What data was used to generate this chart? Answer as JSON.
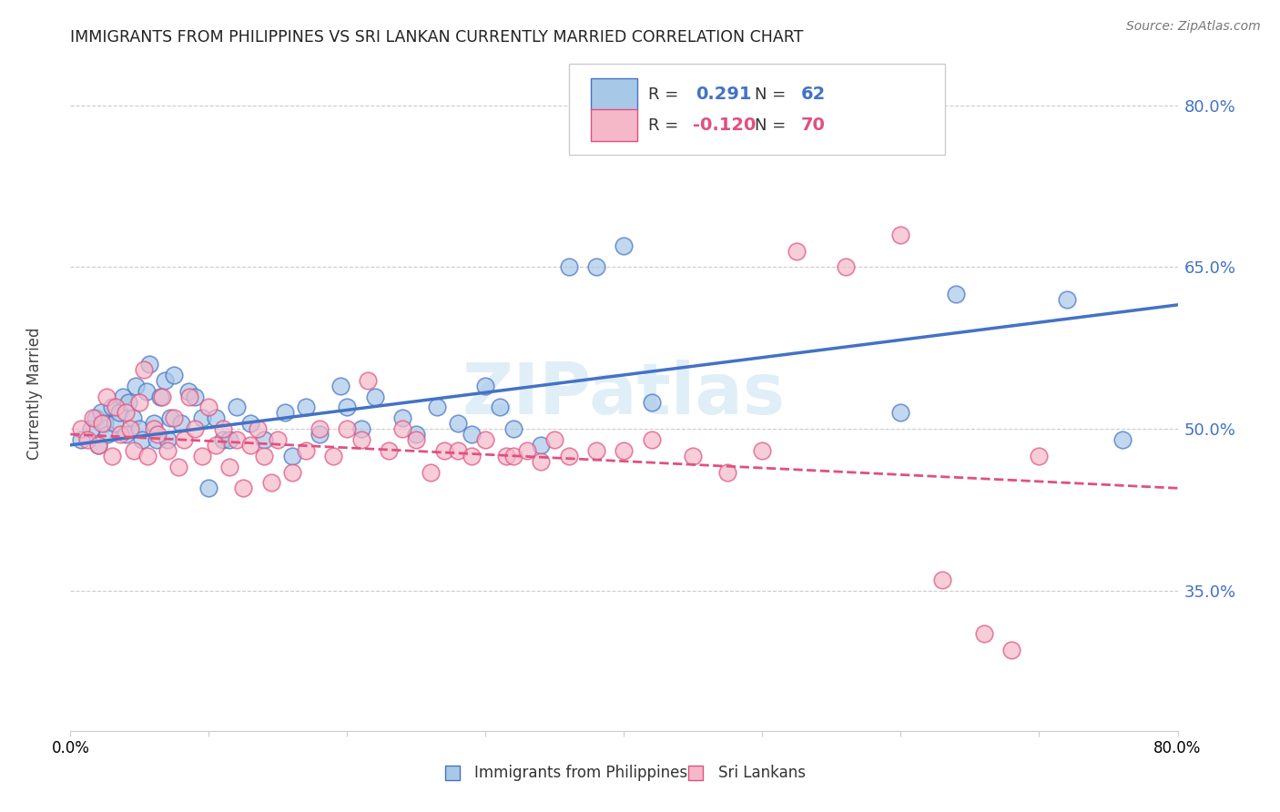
{
  "title": "IMMIGRANTS FROM PHILIPPINES VS SRI LANKAN CURRENTLY MARRIED CORRELATION CHART",
  "source": "Source: ZipAtlas.com",
  "ylabel": "Currently Married",
  "legend_label1": "Immigrants from Philippines",
  "legend_label2": "Sri Lankans",
  "r1": "0.291",
  "n1": "62",
  "r2": "-0.120",
  "n2": "70",
  "color1": "#a8c8e8",
  "color2": "#f5b8c8",
  "line_color1": "#4472c4",
  "line_color2": "#e05080",
  "watermark": "ZIPatlas",
  "ytick_labels": [
    "35.0%",
    "50.0%",
    "65.0%",
    "80.0%"
  ],
  "ytick_values": [
    0.35,
    0.5,
    0.65,
    0.8
  ],
  "xmin": 0.0,
  "xmax": 0.8,
  "ymin": 0.22,
  "ymax": 0.845,
  "blue_x": [
    0.008,
    0.015,
    0.018,
    0.02,
    0.022,
    0.025,
    0.027,
    0.03,
    0.032,
    0.035,
    0.038,
    0.04,
    0.042,
    0.045,
    0.047,
    0.05,
    0.052,
    0.055,
    0.057,
    0.06,
    0.062,
    0.065,
    0.068,
    0.07,
    0.072,
    0.075,
    0.08,
    0.085,
    0.09,
    0.095,
    0.1,
    0.105,
    0.11,
    0.115,
    0.12,
    0.13,
    0.14,
    0.155,
    0.16,
    0.17,
    0.18,
    0.195,
    0.2,
    0.21,
    0.22,
    0.24,
    0.25,
    0.265,
    0.28,
    0.29,
    0.3,
    0.31,
    0.32,
    0.34,
    0.36,
    0.38,
    0.4,
    0.42,
    0.6,
    0.64,
    0.72,
    0.76
  ],
  "blue_y": [
    0.49,
    0.5,
    0.51,
    0.485,
    0.515,
    0.505,
    0.495,
    0.52,
    0.505,
    0.515,
    0.53,
    0.495,
    0.525,
    0.51,
    0.54,
    0.5,
    0.49,
    0.535,
    0.56,
    0.505,
    0.49,
    0.53,
    0.545,
    0.49,
    0.51,
    0.55,
    0.505,
    0.535,
    0.53,
    0.51,
    0.445,
    0.51,
    0.49,
    0.49,
    0.52,
    0.505,
    0.49,
    0.515,
    0.475,
    0.52,
    0.495,
    0.54,
    0.52,
    0.5,
    0.53,
    0.51,
    0.495,
    0.52,
    0.505,
    0.495,
    0.54,
    0.52,
    0.5,
    0.485,
    0.65,
    0.65,
    0.67,
    0.525,
    0.515,
    0.625,
    0.62,
    0.49
  ],
  "pink_x": [
    0.008,
    0.012,
    0.016,
    0.02,
    0.023,
    0.026,
    0.03,
    0.033,
    0.036,
    0.04,
    0.043,
    0.046,
    0.05,
    0.053,
    0.056,
    0.06,
    0.063,
    0.066,
    0.07,
    0.075,
    0.078,
    0.082,
    0.086,
    0.09,
    0.095,
    0.1,
    0.105,
    0.11,
    0.115,
    0.12,
    0.125,
    0.13,
    0.135,
    0.14,
    0.145,
    0.15,
    0.16,
    0.17,
    0.18,
    0.19,
    0.2,
    0.21,
    0.215,
    0.23,
    0.24,
    0.25,
    0.26,
    0.27,
    0.28,
    0.29,
    0.3,
    0.315,
    0.32,
    0.33,
    0.34,
    0.35,
    0.36,
    0.38,
    0.4,
    0.42,
    0.45,
    0.475,
    0.5,
    0.525,
    0.56,
    0.6,
    0.63,
    0.66,
    0.68,
    0.7
  ],
  "pink_y": [
    0.5,
    0.49,
    0.51,
    0.485,
    0.505,
    0.53,
    0.475,
    0.52,
    0.495,
    0.515,
    0.5,
    0.48,
    0.525,
    0.555,
    0.475,
    0.5,
    0.495,
    0.53,
    0.48,
    0.51,
    0.465,
    0.49,
    0.53,
    0.5,
    0.475,
    0.52,
    0.485,
    0.5,
    0.465,
    0.49,
    0.445,
    0.485,
    0.5,
    0.475,
    0.45,
    0.49,
    0.46,
    0.48,
    0.5,
    0.475,
    0.5,
    0.49,
    0.545,
    0.48,
    0.5,
    0.49,
    0.46,
    0.48,
    0.48,
    0.475,
    0.49,
    0.475,
    0.475,
    0.48,
    0.47,
    0.49,
    0.475,
    0.48,
    0.48,
    0.49,
    0.475,
    0.46,
    0.48,
    0.665,
    0.65,
    0.68,
    0.36,
    0.31,
    0.295,
    0.475
  ],
  "blue_line_x": [
    0.0,
    0.8
  ],
  "blue_line_y": [
    0.485,
    0.615
  ],
  "pink_line_x": [
    0.0,
    0.8
  ],
  "pink_line_y": [
    0.495,
    0.445
  ]
}
